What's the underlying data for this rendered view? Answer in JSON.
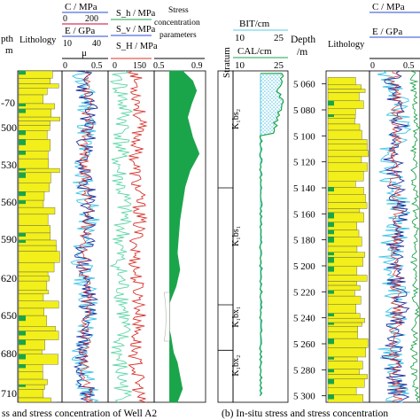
{
  "colors": {
    "litho_yellow": "#f2ef1a",
    "well_green": "#1aa54a",
    "log_blue": "#1f2f9e",
    "log_cyan": "#38c4e8",
    "log_red": "#d8302a",
    "mint": "#5ed6a6",
    "bit_pattern": "#58c8e6"
  },
  "chart_data": [
    {
      "type": "line",
      "panel": "left",
      "headers": {
        "depth": "pth",
        "depth_unit": "m",
        "lithology": "Lithology",
        "c_label": "C / MPa",
        "c_ticks": [
          "0",
          "200"
        ],
        "e_label": "E / GPa",
        "e_ticks": [
          "10",
          "40"
        ],
        "mu_label": "μ",
        "mu_ticks": [
          "0",
          "0.5"
        ],
        "sh_label": "S_h / MPa",
        "sv_label": "S_v / MPa",
        "sH_label": "S_H / MPa",
        "s_ticks": [
          "0",
          "150"
        ],
        "stress_label_1": "Stress",
        "stress_label_2": "concentration",
        "stress_label_3": "parameters",
        "stress_ticks": [
          "0.5",
          "0.9"
        ]
      },
      "depth_ticks": [
        "-70",
        "500",
        "530",
        "560",
        "590",
        "620",
        "650",
        "680",
        "710"
      ],
      "stress_concentration": {
        "depth_fraction": [
          0.0,
          0.03,
          0.06,
          0.1,
          0.14,
          0.2,
          0.25,
          0.3,
          0.35,
          0.4,
          0.45,
          0.5,
          0.55,
          0.6,
          0.65,
          0.7,
          0.75,
          0.8,
          0.85,
          0.88,
          0.92,
          0.96,
          1.0
        ],
        "values": [
          0.72,
          0.8,
          0.83,
          0.79,
          0.76,
          0.8,
          0.85,
          0.78,
          0.74,
          0.72,
          0.7,
          0.69,
          0.68,
          0.7,
          0.67,
          0.62,
          0.6,
          0.63,
          0.65,
          0.68,
          0.7,
          0.72,
          0.68
        ]
      },
      "caption": "ss and stress concentration of Well A2"
    },
    {
      "type": "line",
      "panel": "right",
      "headers": {
        "stratum": "Stratum",
        "bit_label": "BIT/cm",
        "bit_ticks": [
          "10",
          "25"
        ],
        "cal_label": "CAL/cm",
        "cal_ticks": [
          "10",
          "25"
        ],
        "depth": "Depth",
        "depth_unit": "/m",
        "lithology": "Lithology",
        "c_label": "C / MPa",
        "e_label": "E / GPa",
        "mu_ticks": [
          "0",
          "0.5"
        ]
      },
      "strata": [
        {
          "name": "K₁bs₂",
          "from": 5050,
          "to": 5140
        },
        {
          "name": "K₁bs₁",
          "from": 5140,
          "to": 5230
        },
        {
          "name": "K₁bx₁",
          "from": 5230,
          "to": 5265
        },
        {
          "name": "K₁bx₂",
          "from": 5265,
          "to": 5305
        }
      ],
      "depth_range": [
        5050,
        5305
      ],
      "depth_ticks": [
        "5 060",
        "5 080",
        "5 100",
        "5 120",
        "5 140",
        "5 160",
        "5 180",
        "5 200",
        "5 220",
        "5 240",
        "5 260",
        "5 280",
        "5 300"
      ],
      "caption": "(b) In-situ stress and stress concentration"
    }
  ]
}
